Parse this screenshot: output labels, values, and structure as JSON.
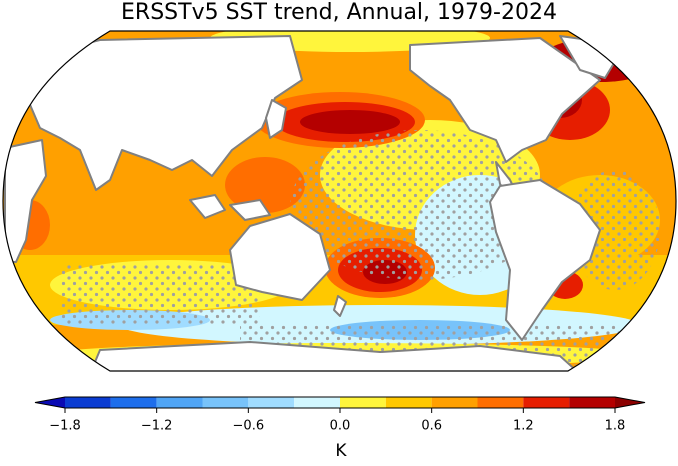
{
  "map": {
    "title": "ERSSTv5 SST trend, Annual, 1979-2024",
    "colorbar": {
      "label": "K",
      "levels": [
        -1.8,
        -1.5,
        -1.2,
        -0.9,
        -0.6,
        -0.3,
        0,
        0.3,
        0.6,
        0.9,
        1.2,
        1.5,
        1.8
      ],
      "colors": [
        "#0a3cd2",
        "#1e6eeb",
        "#50a5f5",
        "#78c3fa",
        "#a0dcff",
        "#d2f7ff",
        "#fff53c",
        "#ffc800",
        "#ffa000",
        "#ff6e00",
        "#e61e00",
        "#b40000"
      ],
      "under_color": "#0a0ab4",
      "over_color": "#8c0000",
      "ticks": [
        {
          "value": -1.8,
          "label": "−1.8"
        },
        {
          "value": -1.2,
          "label": "−1.2"
        },
        {
          "value": -0.6,
          "label": "−0.6"
        },
        {
          "value": 0,
          "label": "0.0"
        },
        0.6,
        1.2,
        1.8
      ]
    }
  }
}
